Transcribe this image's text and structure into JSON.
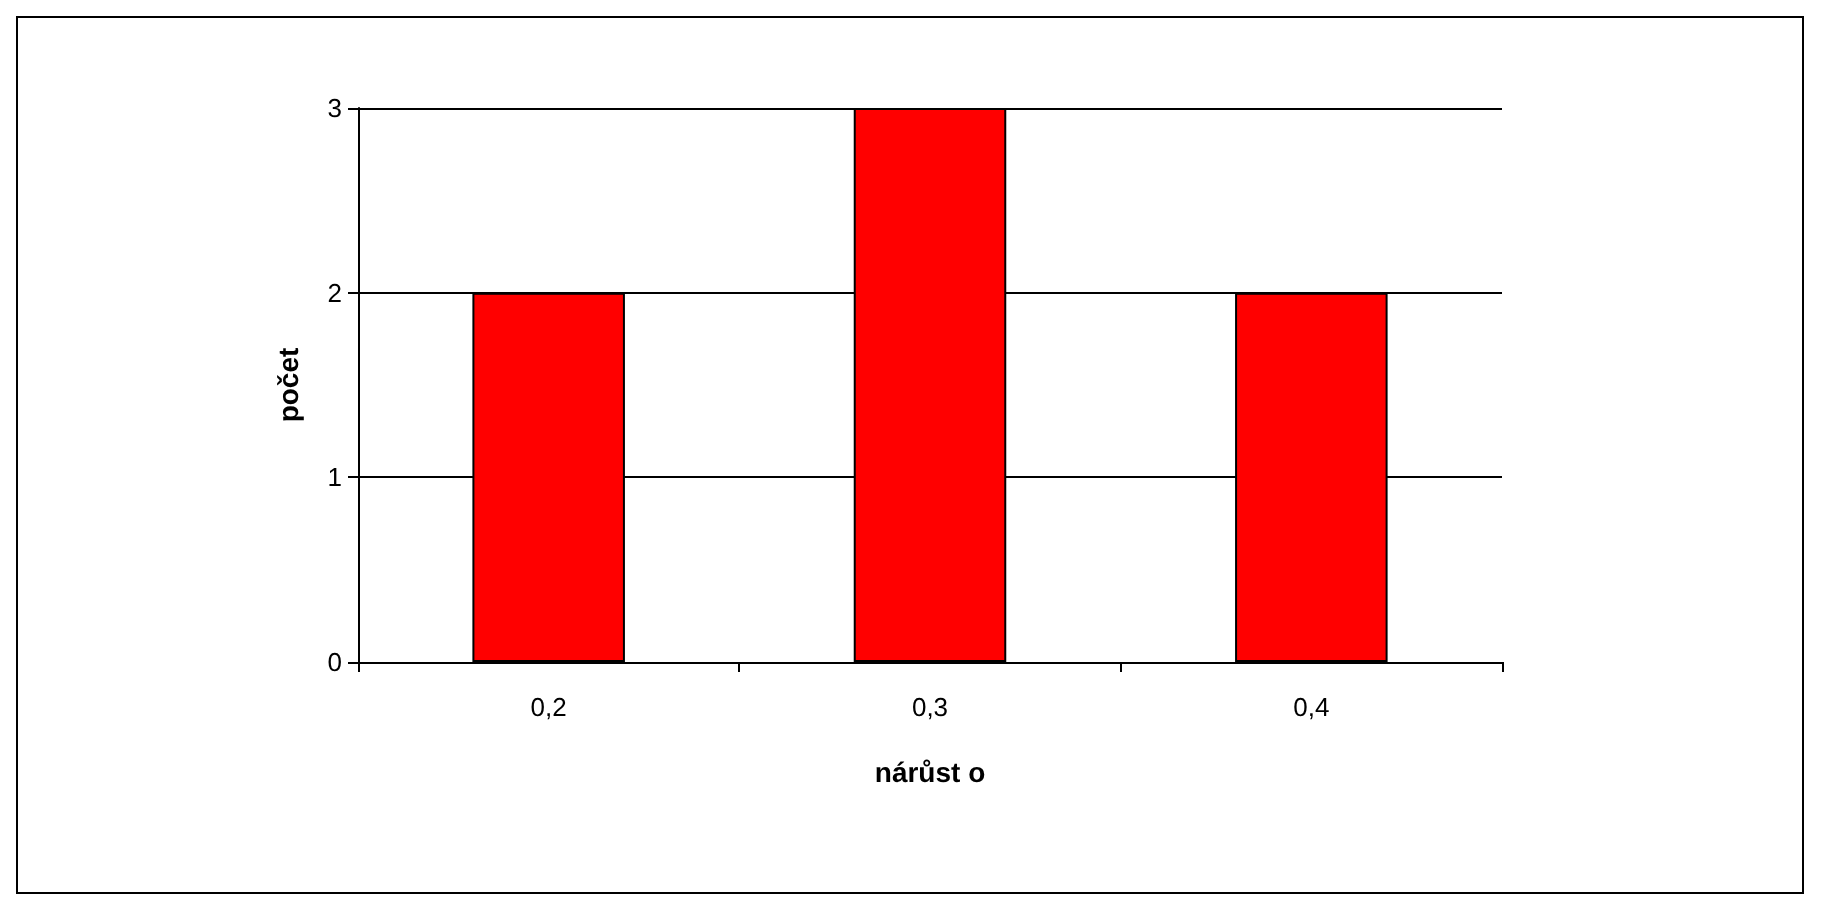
{
  "chart_data": {
    "type": "bar",
    "xlabel": "nárůst o",
    "ylabel": "počet",
    "categories": [
      "0,2",
      "0,3",
      "0,4"
    ],
    "values": [
      2,
      3,
      2
    ],
    "color": "#ff0000",
    "ylim": [
      0,
      3
    ],
    "yticks": [
      0,
      1,
      2,
      3
    ],
    "grid": "y"
  }
}
